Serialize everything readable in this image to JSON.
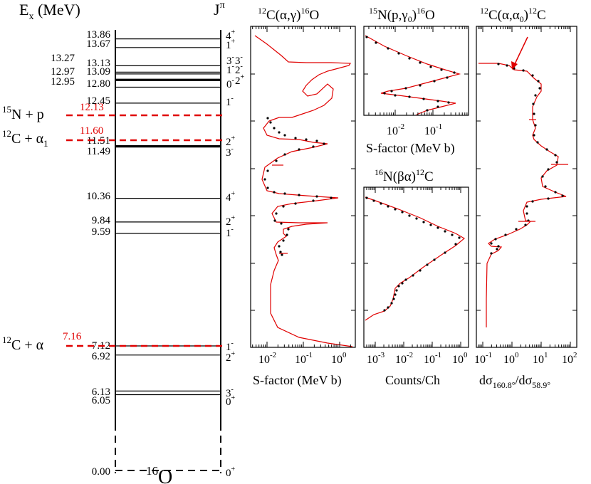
{
  "colors": {
    "threshold": "#e00000",
    "fit": "#e00000",
    "data": "#000000",
    "levels": "#000000"
  },
  "chart_data": [
    {
      "type": "level-scheme",
      "nucleus": "16O",
      "nucleus_label": {
        "mass": "16",
        "symbol": "O"
      },
      "axis_label": {
        "main": "E",
        "sub": "x",
        "unit": " (MeV)"
      },
      "jpi_header": {
        "main": "J",
        "sup": "π"
      },
      "levels": [
        {
          "energy": "13.86",
          "jpi": "4+",
          "j": "4",
          "p": "+"
        },
        {
          "energy": "13.67",
          "jpi": "1+",
          "j": "1",
          "p": "+"
        },
        {
          "energy": "13.27",
          "jpi": "3-",
          "j": "3",
          "p": "-"
        },
        {
          "energy": "13.13",
          "jpi": "3-",
          "j": "3",
          "p": "-"
        },
        {
          "energy": "13.09",
          "jpi": "1-",
          "j": "1",
          "p": "-"
        },
        {
          "energy": "12.97",
          "jpi": "2-",
          "j": "2",
          "p": "-"
        },
        {
          "energy": "12.95",
          "jpi": "0-",
          "j": "0",
          "p": "-"
        },
        {
          "energy": "12.80",
          "jpi": "2+",
          "j": "2",
          "p": "+"
        },
        {
          "energy": "12.45",
          "jpi": "1-",
          "j": "1",
          "p": "-"
        },
        {
          "energy": "11.51",
          "jpi": "2+",
          "j": "2",
          "p": "+"
        },
        {
          "energy": "11.49",
          "jpi": "3-",
          "j": "3",
          "p": "-"
        },
        {
          "energy": "10.36",
          "jpi": "4+",
          "j": "4",
          "p": "+"
        },
        {
          "energy": "9.84",
          "jpi": "2+",
          "j": "2",
          "p": "+"
        },
        {
          "energy": "9.59",
          "jpi": "1-",
          "j": "1",
          "p": "-"
        },
        {
          "energy": "7.12",
          "jpi": "1-",
          "j": "1",
          "p": "-"
        },
        {
          "energy": "6.92",
          "jpi": "2+",
          "j": "2",
          "p": "+"
        },
        {
          "energy": "6.13",
          "jpi": "3-",
          "j": "3",
          "p": "-"
        },
        {
          "energy": "6.05",
          "jpi": "0+",
          "j": "0",
          "p": "+"
        },
        {
          "energy": "0.00",
          "jpi": "0+",
          "j": "0",
          "p": "+"
        }
      ],
      "thresholds": [
        {
          "energy": "12.13",
          "a1": "15",
          "a2": "N + p"
        },
        {
          "energy": "11.60",
          "a1": "12",
          "a2": "C + α",
          "a3": "1"
        },
        {
          "energy": "7.16",
          "a1": "12",
          "a2": "C + α"
        }
      ]
    },
    {
      "type": "line",
      "panel": "capture",
      "title": {
        "p1": "12",
        "p2": "C(α,γ)",
        "p3": "16",
        "p4": "O"
      },
      "xlabel": "S-factor (MeV b)",
      "xscale": "log",
      "x_ticks": [
        "10",
        "10",
        "10"
      ],
      "x_exponents": [
        "-2",
        "-1",
        "0"
      ],
      "ylim_MeV": [
        7.0,
        14.0
      ]
    },
    {
      "type": "line",
      "panel": "proton",
      "title": {
        "p1": "15",
        "p2": "N(p,γ",
        "p3": "0",
        "p4": ")",
        "p5": "16",
        "p6": "O"
      },
      "xlabel": "S-factor (MeV b)",
      "xscale": "log",
      "x_ticks": [
        "10",
        "10"
      ],
      "x_exponents": [
        "-2",
        "-1"
      ]
    },
    {
      "type": "line",
      "panel": "beta",
      "title": {
        "p1": "16",
        "p2": "N(βα)",
        "p3": "12",
        "p4": "C"
      },
      "xlabel": "Counts/Ch",
      "xscale": "log",
      "x_ticks": [
        "10",
        "10",
        "10",
        "10"
      ],
      "x_exponents": [
        "-3",
        "-2",
        "-1",
        "0"
      ]
    },
    {
      "type": "line",
      "panel": "scattering",
      "title": {
        "p1": "12",
        "p2": "C(α,α",
        "p3": "0",
        "p4": ")",
        "p5": "12",
        "p6": "C"
      },
      "xlabel": {
        "a": "dσ",
        "b": "160.8°",
        "c": "/dσ",
        "d": "58.9°"
      },
      "xscale": "log",
      "x_ticks": [
        "10",
        "10",
        "10",
        "10"
      ],
      "x_exponents": [
        "-1",
        "0",
        "1",
        "2"
      ]
    }
  ]
}
